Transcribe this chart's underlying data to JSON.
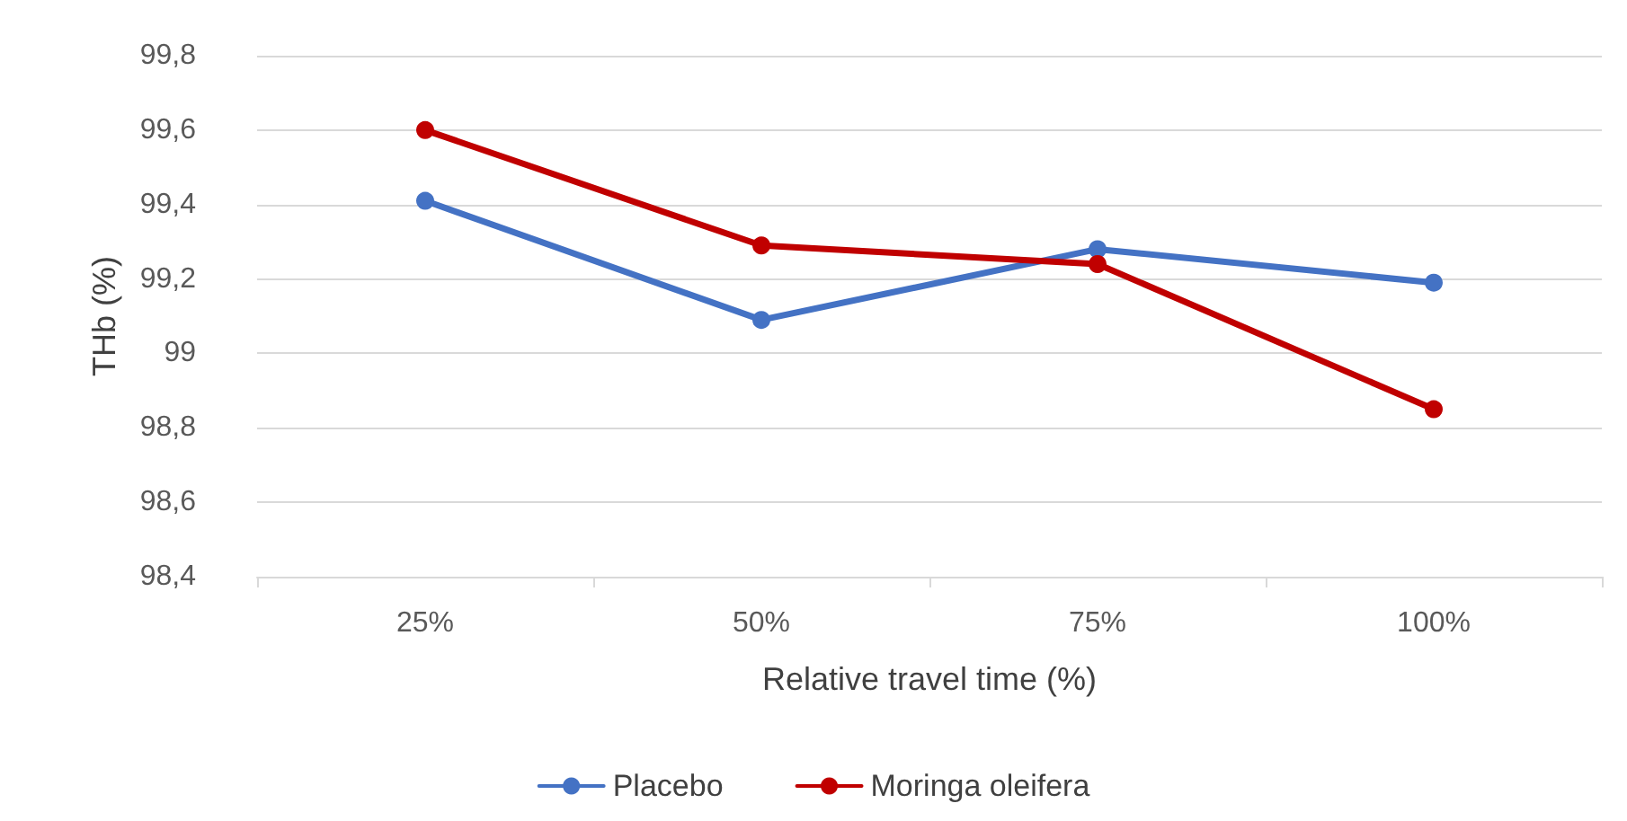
{
  "chart_data": {
    "type": "line",
    "xlabel": "Relative travel time (%)",
    "ylabel": "THb (%)",
    "categories": [
      "25%",
      "50%",
      "75%",
      "100%"
    ],
    "series": [
      {
        "name": "Placebo",
        "color": "#4472c4",
        "values": [
          99.41,
          99.09,
          99.28,
          99.19
        ]
      },
      {
        "name": "Moringa oleifera",
        "color": "#c00000",
        "values": [
          99.6,
          99.29,
          99.24,
          98.85
        ]
      }
    ],
    "ylim": [
      98.4,
      99.8
    ],
    "yticks": [
      {
        "value": 98.4,
        "label": "98,4"
      },
      {
        "value": 98.6,
        "label": "98,6"
      },
      {
        "value": 98.8,
        "label": "98,8"
      },
      99,
      {
        "value": 99.2,
        "label": "99,2"
      },
      {
        "value": 99.4,
        "label": "99,4"
      },
      {
        "value": 99.6,
        "label": "99,6"
      },
      {
        "value": 99.8,
        "label": "99,8"
      }
    ],
    "grid": "y",
    "legend": "bottom",
    "marker": "circle",
    "line_style": "solid"
  }
}
